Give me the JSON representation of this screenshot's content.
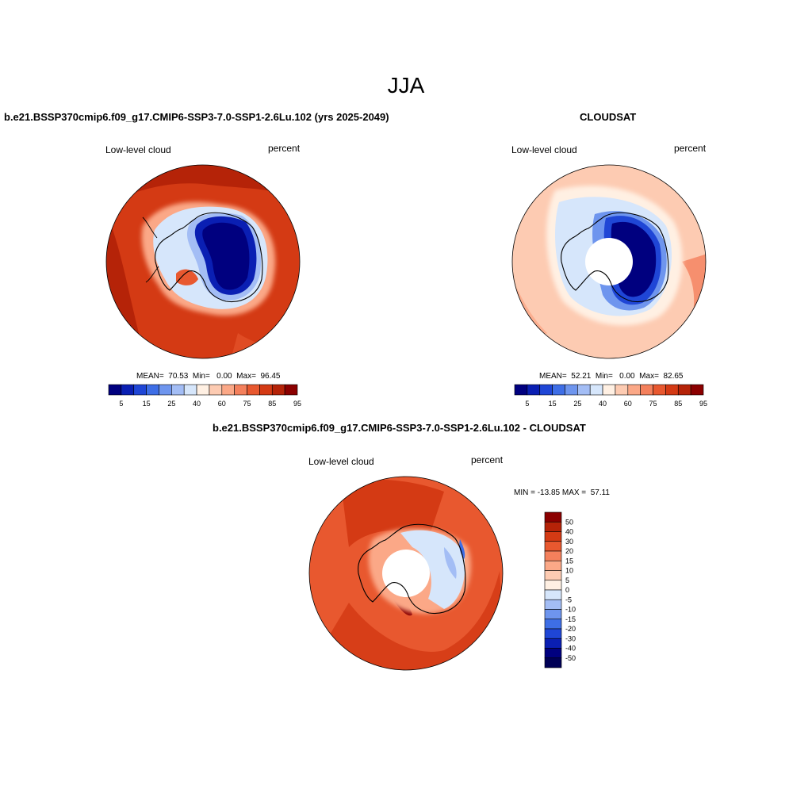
{
  "figure": {
    "season": "JJA",
    "panel_model": {
      "header": "b.e21.BSSP370cmip6.f09_g17.CMIP6-SSP3-7.0-SSP1-2.6Lu.102 (yrs 2025-2049)",
      "left_label": "Low-level cloud",
      "right_label": "percent",
      "stats": {
        "mean": "70.53",
        "min": "0.00",
        "max": "96.45"
      },
      "stats_text": "MEAN=  70.53  Min=   0.00  Max=  96.45"
    },
    "panel_obs": {
      "header": "CLOUDSAT",
      "left_label": "Low-level cloud",
      "right_label": "percent",
      "stats": {
        "mean": "52.21",
        "min": "0.00",
        "max": "82.65"
      },
      "stats_text": "MEAN=  52.21  Min=   0.00  Max=  82.65"
    },
    "panel_diff": {
      "header": "b.e21.BSSP370cmip6.f09_g17.CMIP6-SSP3-7.0-SSP1-2.6Lu.102 - CLOUDSAT",
      "left_label": "Low-level cloud",
      "right_label": "percent",
      "stats": {
        "min": "-13.85",
        "max": "57.11"
      },
      "stats_text": "MIN = -13.85 MAX =  57.11"
    }
  },
  "colorbars": {
    "absolute": {
      "tick_labels": [
        "5",
        "15",
        "25",
        "40",
        "60",
        "75",
        "85",
        "95"
      ],
      "colors": [
        "#00007f",
        "#0a1fb3",
        "#1f46d6",
        "#3e6ee6",
        "#6e95ee",
        "#a3bdf5",
        "#d6e6fb",
        "#fff0e3",
        "#fdcbb2",
        "#fba887",
        "#f4805c",
        "#e8582f",
        "#d43a14",
        "#b52308",
        "#8b0000"
      ]
    },
    "difference": {
      "tick_labels": [
        "50",
        "40",
        "30",
        "20",
        "15",
        "10",
        "5",
        "0",
        "-5",
        "-10",
        "-15",
        "-20",
        "-30",
        "-40",
        "-50"
      ],
      "colors": [
        "#8b0000",
        "#b52308",
        "#d43a14",
        "#e8582f",
        "#f4805c",
        "#fba887",
        "#fdcbb2",
        "#fff0e3",
        "#d6e6fb",
        "#a3bdf5",
        "#6e95ee",
        "#3e6ee6",
        "#1f46d6",
        "#0a1fb3",
        "#00007f",
        "#000055"
      ]
    }
  }
}
